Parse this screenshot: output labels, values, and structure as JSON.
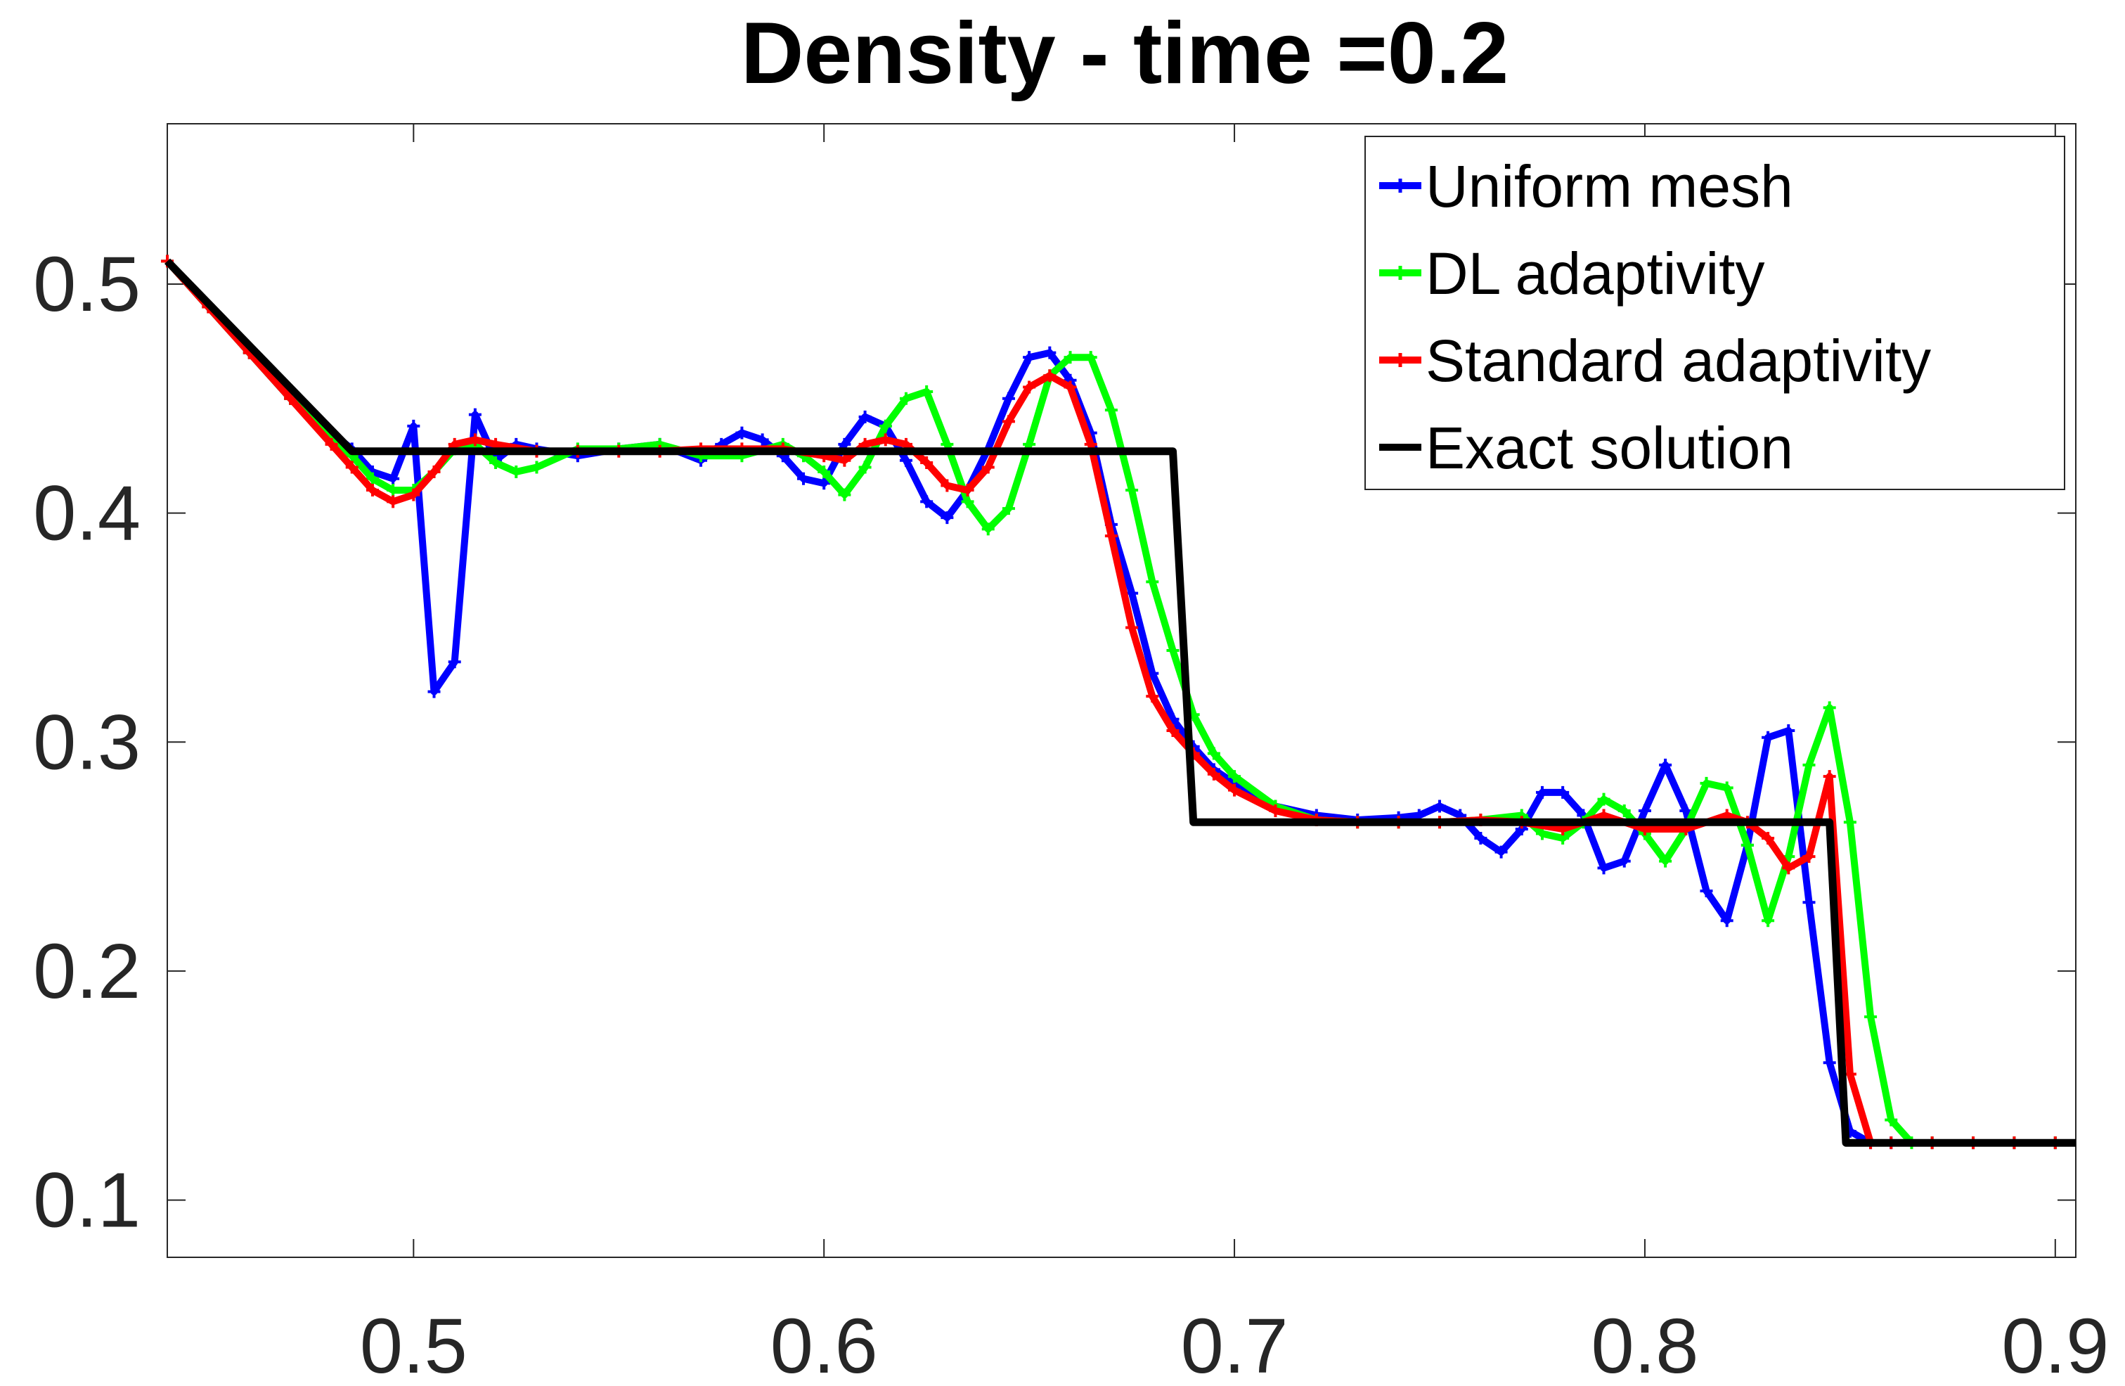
{
  "chart_data": {
    "type": "line",
    "title": "Density - time =0.2",
    "xlabel": "",
    "ylabel": "",
    "xlim": [
      0.44,
      0.905
    ],
    "ylim": [
      0.075,
      0.57
    ],
    "xticks": [
      0.5,
      0.6,
      0.7,
      0.8,
      0.9
    ],
    "xtick_labels": [
      "0.5",
      "0.6",
      "0.7",
      "0.8",
      "0.9"
    ],
    "yticks": [
      0.1,
      0.2,
      0.3,
      0.4,
      0.5
    ],
    "ytick_labels": [
      "0.1",
      "0.2",
      "0.3",
      "0.4",
      "0.5"
    ],
    "grid": false,
    "legend_position": "top-right",
    "series": [
      {
        "name": "Uniform mesh",
        "color": "#0000ff",
        "marker": "plus",
        "x": [
          0.44,
          0.45,
          0.46,
          0.47,
          0.48,
          0.485,
          0.49,
          0.495,
          0.5,
          0.505,
          0.51,
          0.515,
          0.52,
          0.525,
          0.53,
          0.54,
          0.55,
          0.56,
          0.57,
          0.575,
          0.58,
          0.585,
          0.59,
          0.595,
          0.6,
          0.605,
          0.61,
          0.615,
          0.62,
          0.625,
          0.63,
          0.635,
          0.64,
          0.645,
          0.65,
          0.655,
          0.66,
          0.665,
          0.67,
          0.675,
          0.68,
          0.685,
          0.69,
          0.695,
          0.7,
          0.71,
          0.72,
          0.73,
          0.74,
          0.745,
          0.75,
          0.755,
          0.76,
          0.765,
          0.77,
          0.775,
          0.78,
          0.785,
          0.79,
          0.795,
          0.8,
          0.805,
          0.81,
          0.815,
          0.82,
          0.825,
          0.83,
          0.835,
          0.84,
          0.845,
          0.85,
          0.855,
          0.86,
          0.87,
          0.88,
          0.89,
          0.9
        ],
        "y": [
          0.51,
          0.49,
          0.47,
          0.45,
          0.435,
          0.428,
          0.418,
          0.415,
          0.438,
          0.322,
          0.335,
          0.443,
          0.423,
          0.43,
          0.428,
          0.425,
          0.428,
          0.43,
          0.423,
          0.43,
          0.435,
          0.432,
          0.425,
          0.415,
          0.413,
          0.43,
          0.442,
          0.438,
          0.423,
          0.405,
          0.398,
          0.41,
          0.428,
          0.45,
          0.468,
          0.47,
          0.458,
          0.435,
          0.395,
          0.365,
          0.33,
          0.31,
          0.298,
          0.288,
          0.282,
          0.272,
          0.268,
          0.266,
          0.267,
          0.268,
          0.272,
          0.268,
          0.258,
          0.252,
          0.262,
          0.278,
          0.278,
          0.268,
          0.245,
          0.248,
          0.27,
          0.29,
          0.27,
          0.235,
          0.222,
          0.255,
          0.302,
          0.305,
          0.23,
          0.16,
          0.13,
          0.125,
          0.125,
          0.125,
          0.125,
          0.125,
          0.125
        ]
      },
      {
        "name": "DL adaptivity",
        "color": "#00ff00",
        "marker": "plus",
        "x": [
          0.44,
          0.45,
          0.46,
          0.47,
          0.48,
          0.485,
          0.49,
          0.495,
          0.5,
          0.505,
          0.51,
          0.515,
          0.52,
          0.525,
          0.53,
          0.54,
          0.55,
          0.56,
          0.57,
          0.58,
          0.59,
          0.595,
          0.6,
          0.605,
          0.61,
          0.615,
          0.62,
          0.625,
          0.63,
          0.635,
          0.64,
          0.645,
          0.65,
          0.655,
          0.66,
          0.665,
          0.67,
          0.675,
          0.68,
          0.685,
          0.69,
          0.695,
          0.7,
          0.71,
          0.72,
          0.73,
          0.74,
          0.75,
          0.76,
          0.77,
          0.775,
          0.78,
          0.785,
          0.79,
          0.795,
          0.8,
          0.805,
          0.81,
          0.815,
          0.82,
          0.825,
          0.83,
          0.835,
          0.84,
          0.845,
          0.85,
          0.855,
          0.86,
          0.865,
          0.87,
          0.88,
          0.89,
          0.9
        ],
        "y": [
          0.51,
          0.49,
          0.47,
          0.45,
          0.432,
          0.425,
          0.415,
          0.41,
          0.41,
          0.418,
          0.428,
          0.43,
          0.422,
          0.418,
          0.42,
          0.428,
          0.428,
          0.43,
          0.425,
          0.425,
          0.43,
          0.425,
          0.418,
          0.408,
          0.42,
          0.438,
          0.45,
          0.453,
          0.43,
          0.405,
          0.393,
          0.402,
          0.43,
          0.46,
          0.468,
          0.468,
          0.445,
          0.41,
          0.37,
          0.34,
          0.312,
          0.295,
          0.285,
          0.272,
          0.266,
          0.265,
          0.265,
          0.265,
          0.266,
          0.268,
          0.26,
          0.258,
          0.265,
          0.275,
          0.27,
          0.26,
          0.248,
          0.262,
          0.282,
          0.28,
          0.255,
          0.222,
          0.25,
          0.29,
          0.315,
          0.265,
          0.18,
          0.135,
          0.125,
          0.125,
          0.125,
          0.125,
          0.125
        ]
      },
      {
        "name": "Standard adaptivity",
        "color": "#ff0000",
        "marker": "plus",
        "x": [
          0.44,
          0.45,
          0.46,
          0.47,
          0.48,
          0.485,
          0.49,
          0.495,
          0.5,
          0.505,
          0.51,
          0.515,
          0.52,
          0.53,
          0.54,
          0.55,
          0.56,
          0.57,
          0.58,
          0.59,
          0.6,
          0.605,
          0.61,
          0.615,
          0.62,
          0.625,
          0.63,
          0.635,
          0.64,
          0.645,
          0.65,
          0.655,
          0.66,
          0.665,
          0.67,
          0.675,
          0.68,
          0.685,
          0.69,
          0.695,
          0.7,
          0.71,
          0.72,
          0.73,
          0.74,
          0.75,
          0.76,
          0.77,
          0.78,
          0.79,
          0.8,
          0.81,
          0.82,
          0.825,
          0.83,
          0.835,
          0.84,
          0.845,
          0.85,
          0.855,
          0.86,
          0.87,
          0.88,
          0.89,
          0.9
        ],
        "y": [
          0.51,
          0.49,
          0.47,
          0.45,
          0.43,
          0.42,
          0.41,
          0.405,
          0.408,
          0.418,
          0.43,
          0.432,
          0.43,
          0.427,
          0.427,
          0.427,
          0.427,
          0.428,
          0.428,
          0.428,
          0.425,
          0.423,
          0.43,
          0.432,
          0.43,
          0.422,
          0.412,
          0.41,
          0.42,
          0.44,
          0.455,
          0.46,
          0.455,
          0.43,
          0.39,
          0.35,
          0.32,
          0.305,
          0.295,
          0.286,
          0.279,
          0.27,
          0.266,
          0.265,
          0.265,
          0.265,
          0.266,
          0.265,
          0.262,
          0.268,
          0.262,
          0.262,
          0.268,
          0.265,
          0.258,
          0.245,
          0.25,
          0.285,
          0.155,
          0.125,
          0.125,
          0.125,
          0.125,
          0.125,
          0.125
        ]
      },
      {
        "name": "Exact solution",
        "color": "#000000",
        "marker": "none",
        "x": [
          0.44,
          0.485,
          0.685,
          0.69,
          0.845,
          0.849,
          0.905
        ],
        "y": [
          0.51,
          0.427,
          0.427,
          0.265,
          0.265,
          0.125,
          0.125
        ]
      }
    ]
  }
}
